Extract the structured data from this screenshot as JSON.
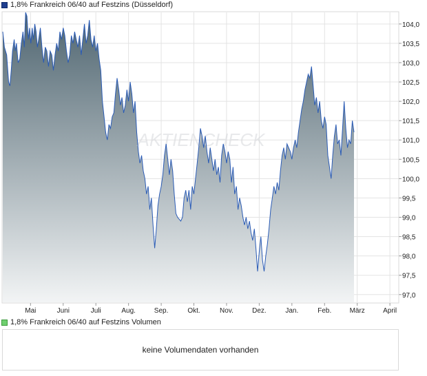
{
  "price_legend": {
    "label": "1,8% Frankreich 06/40 auf Festzins (Düsseldorf)",
    "color": "#1f3f8f"
  },
  "volume_legend": {
    "label": "1,8% Frankreich 06/40 auf Festzins Volumen",
    "color": "#6fcf6f"
  },
  "volume_panel": {
    "message": "keine Volumendaten vorhanden"
  },
  "watermark": "AKTIENCHECK",
  "chart_data": {
    "type": "area",
    "title": "1,8% Frankreich 06/40 auf Festzins (Düsseldorf)",
    "ylim": [
      96.8,
      104.3
    ],
    "yticks": [
      {
        "value": 104.0,
        "label": "104,0"
      },
      {
        "value": 103.5,
        "label": "103,5"
      },
      {
        "value": 103.0,
        "label": "103,0"
      },
      {
        "value": 102.5,
        "label": "102,5"
      },
      {
        "value": 102.0,
        "label": "102,0"
      },
      {
        "value": 101.5,
        "label": "101,5"
      },
      {
        "value": 101.0,
        "label": "101,0"
      },
      {
        "value": 100.5,
        "label": "100,5"
      },
      {
        "value": 100.0,
        "label": "100,0"
      },
      {
        "value": 99.5,
        "label": "99,5"
      },
      {
        "value": 99.0,
        "label": "99,0"
      },
      {
        "value": 98.5,
        "label": "98,5"
      },
      {
        "value": 98.0,
        "label": "98,0"
      },
      {
        "value": 97.5,
        "label": "97,5"
      },
      {
        "value": 97.0,
        "label": "97,0"
      }
    ],
    "xlim": [
      0,
      12.1
    ],
    "xticks": [
      {
        "pos": 0.85,
        "label": "Mai"
      },
      {
        "pos": 1.85,
        "label": "Juni"
      },
      {
        "pos": 2.85,
        "label": "Juli"
      },
      {
        "pos": 3.85,
        "label": "Aug."
      },
      {
        "pos": 4.85,
        "label": "Sep."
      },
      {
        "pos": 5.85,
        "label": "Okt."
      },
      {
        "pos": 6.85,
        "label": "Nov."
      },
      {
        "pos": 7.85,
        "label": "Dez."
      },
      {
        "pos": 8.85,
        "label": "Jan."
      },
      {
        "pos": 9.85,
        "label": "Feb."
      },
      {
        "pos": 10.85,
        "label": "März"
      },
      {
        "pos": 11.85,
        "label": "April"
      }
    ],
    "series": [
      {
        "line_color": "#2a5bb5",
        "fill_top": "#4f6570",
        "fill_bottom": "#f2f4f5",
        "points": [
          [
            0.0,
            103.8
          ],
          [
            0.05,
            103.4
          ],
          [
            0.12,
            103.2
          ],
          [
            0.18,
            102.5
          ],
          [
            0.22,
            102.4
          ],
          [
            0.26,
            102.8
          ],
          [
            0.3,
            103.3
          ],
          [
            0.35,
            103.6
          ],
          [
            0.38,
            103.3
          ],
          [
            0.42,
            103.5
          ],
          [
            0.47,
            103.0
          ],
          [
            0.52,
            103.1
          ],
          [
            0.57,
            103.5
          ],
          [
            0.62,
            103.8
          ],
          [
            0.66,
            103.4
          ],
          [
            0.7,
            104.3
          ],
          [
            0.74,
            104.2
          ],
          [
            0.78,
            103.6
          ],
          [
            0.82,
            103.9
          ],
          [
            0.86,
            103.5
          ],
          [
            0.9,
            103.9
          ],
          [
            0.94,
            103.6
          ],
          [
            0.98,
            104.0
          ],
          [
            1.02,
            103.8
          ],
          [
            1.06,
            103.4
          ],
          [
            1.1,
            103.6
          ],
          [
            1.15,
            103.9
          ],
          [
            1.2,
            103.4
          ],
          [
            1.25,
            103.0
          ],
          [
            1.3,
            103.4
          ],
          [
            1.35,
            103.3
          ],
          [
            1.4,
            102.9
          ],
          [
            1.45,
            103.3
          ],
          [
            1.5,
            103.2
          ],
          [
            1.55,
            102.8
          ],
          [
            1.6,
            103.2
          ],
          [
            1.65,
            103.5
          ],
          [
            1.7,
            103.3
          ],
          [
            1.75,
            103.8
          ],
          [
            1.8,
            103.6
          ],
          [
            1.85,
            103.9
          ],
          [
            1.9,
            103.7
          ],
          [
            1.95,
            103.3
          ],
          [
            2.0,
            103.0
          ],
          [
            2.05,
            103.2
          ],
          [
            2.1,
            103.7
          ],
          [
            2.15,
            103.5
          ],
          [
            2.2,
            103.8
          ],
          [
            2.25,
            103.6
          ],
          [
            2.3,
            103.4
          ],
          [
            2.35,
            103.7
          ],
          [
            2.4,
            103.2
          ],
          [
            2.45,
            103.6
          ],
          [
            2.5,
            104.0
          ],
          [
            2.55,
            103.5
          ],
          [
            2.6,
            103.7
          ],
          [
            2.65,
            104.1
          ],
          [
            2.7,
            103.6
          ],
          [
            2.75,
            103.4
          ],
          [
            2.8,
            103.7
          ],
          [
            2.85,
            103.3
          ],
          [
            2.9,
            103.5
          ],
          [
            2.95,
            103.1
          ],
          [
            3.0,
            102.8
          ],
          [
            3.05,
            102.0
          ],
          [
            3.1,
            101.6
          ],
          [
            3.15,
            101.2
          ],
          [
            3.2,
            101.0
          ],
          [
            3.25,
            101.4
          ],
          [
            3.3,
            101.3
          ],
          [
            3.35,
            101.6
          ],
          [
            3.4,
            101.7
          ],
          [
            3.45,
            102.2
          ],
          [
            3.5,
            102.6
          ],
          [
            3.55,
            102.3
          ],
          [
            3.6,
            101.9
          ],
          [
            3.65,
            102.1
          ],
          [
            3.7,
            101.7
          ],
          [
            3.75,
            101.9
          ],
          [
            3.8,
            102.3
          ],
          [
            3.85,
            102.0
          ],
          [
            3.9,
            102.5
          ],
          [
            3.95,
            102.2
          ],
          [
            4.0,
            101.7
          ],
          [
            4.05,
            102.0
          ],
          [
            4.1,
            101.2
          ],
          [
            4.15,
            100.7
          ],
          [
            4.2,
            100.4
          ],
          [
            4.25,
            100.6
          ],
          [
            4.3,
            100.2
          ],
          [
            4.35,
            100.0
          ],
          [
            4.4,
            99.6
          ],
          [
            4.45,
            99.8
          ],
          [
            4.5,
            99.2
          ],
          [
            4.55,
            99.5
          ],
          [
            4.6,
            98.8
          ],
          [
            4.65,
            98.2
          ],
          [
            4.7,
            98.7
          ],
          [
            4.75,
            99.3
          ],
          [
            4.8,
            99.6
          ],
          [
            4.85,
            99.8
          ],
          [
            4.9,
            100.1
          ],
          [
            4.95,
            100.6
          ],
          [
            5.0,
            100.9
          ],
          [
            5.05,
            100.5
          ],
          [
            5.1,
            100.1
          ],
          [
            5.15,
            100.5
          ],
          [
            5.2,
            100.2
          ],
          [
            5.25,
            99.6
          ],
          [
            5.3,
            99.1
          ],
          [
            5.35,
            99.0
          ],
          [
            5.4,
            98.95
          ],
          [
            5.45,
            98.9
          ],
          [
            5.5,
            99.0
          ],
          [
            5.55,
            99.5
          ],
          [
            5.6,
            99.7
          ],
          [
            5.65,
            99.4
          ],
          [
            5.7,
            99.7
          ],
          [
            5.75,
            99.2
          ],
          [
            5.8,
            99.8
          ],
          [
            5.85,
            99.6
          ],
          [
            5.9,
            100.0
          ],
          [
            5.95,
            100.4
          ],
          [
            6.0,
            100.8
          ],
          [
            6.05,
            101.3
          ],
          [
            6.1,
            101.1
          ],
          [
            6.15,
            100.8
          ],
          [
            6.2,
            101.1
          ],
          [
            6.25,
            100.7
          ],
          [
            6.3,
            100.4
          ],
          [
            6.35,
            100.8
          ],
          [
            6.4,
            100.5
          ],
          [
            6.45,
            100.2
          ],
          [
            6.5,
            100.5
          ],
          [
            6.55,
            100.1
          ],
          [
            6.6,
            100.3
          ],
          [
            6.65,
            99.9
          ],
          [
            6.7,
            100.6
          ],
          [
            6.75,
            100.9
          ],
          [
            6.8,
            100.7
          ],
          [
            6.85,
            100.4
          ],
          [
            6.9,
            100.7
          ],
          [
            6.95,
            100.5
          ],
          [
            7.0,
            99.9
          ],
          [
            7.05,
            100.3
          ],
          [
            7.1,
            99.6
          ],
          [
            7.15,
            99.8
          ],
          [
            7.2,
            99.2
          ],
          [
            7.25,
            99.5
          ],
          [
            7.3,
            99.3
          ],
          [
            7.35,
            99.0
          ],
          [
            7.4,
            98.8
          ],
          [
            7.45,
            99.0
          ],
          [
            7.5,
            98.7
          ],
          [
            7.55,
            98.9
          ],
          [
            7.6,
            98.6
          ],
          [
            7.65,
            98.4
          ],
          [
            7.7,
            98.7
          ],
          [
            7.75,
            98.2
          ],
          [
            7.8,
            97.6
          ],
          [
            7.85,
            98.1
          ],
          [
            7.9,
            98.5
          ],
          [
            7.95,
            97.9
          ],
          [
            8.0,
            97.6
          ],
          [
            8.05,
            98.0
          ],
          [
            8.1,
            98.3
          ],
          [
            8.15,
            98.7
          ],
          [
            8.2,
            99.2
          ],
          [
            8.25,
            99.5
          ],
          [
            8.3,
            99.8
          ],
          [
            8.35,
            99.6
          ],
          [
            8.4,
            99.9
          ],
          [
            8.45,
            99.7
          ],
          [
            8.5,
            100.2
          ],
          [
            8.55,
            100.6
          ],
          [
            8.6,
            100.8
          ],
          [
            8.65,
            100.5
          ],
          [
            8.7,
            100.9
          ],
          [
            8.75,
            100.8
          ],
          [
            8.8,
            100.7
          ],
          [
            8.85,
            100.5
          ],
          [
            8.9,
            100.8
          ],
          [
            8.95,
            101.0
          ],
          [
            9.0,
            100.8
          ],
          [
            9.05,
            101.2
          ],
          [
            9.1,
            101.5
          ],
          [
            9.15,
            101.8
          ],
          [
            9.2,
            102.0
          ],
          [
            9.25,
            102.3
          ],
          [
            9.3,
            102.5
          ],
          [
            9.35,
            102.7
          ],
          [
            9.4,
            102.6
          ],
          [
            9.45,
            102.9
          ],
          [
            9.5,
            102.4
          ],
          [
            9.55,
            101.9
          ],
          [
            9.6,
            102.1
          ],
          [
            9.65,
            101.7
          ],
          [
            9.7,
            102.0
          ],
          [
            9.75,
            101.5
          ],
          [
            9.8,
            101.3
          ],
          [
            9.85,
            101.6
          ],
          [
            9.9,
            101.4
          ],
          [
            9.95,
            100.6
          ],
          [
            10.0,
            100.3
          ],
          [
            10.05,
            100.0
          ],
          [
            10.1,
            100.6
          ],
          [
            10.15,
            101.1
          ],
          [
            10.2,
            101.4
          ],
          [
            10.25,
            100.9
          ],
          [
            10.3,
            101.0
          ],
          [
            10.35,
            100.6
          ],
          [
            10.4,
            101.3
          ],
          [
            10.45,
            102.0
          ],
          [
            10.5,
            101.3
          ],
          [
            10.55,
            100.8
          ],
          [
            10.6,
            101.0
          ],
          [
            10.65,
            100.9
          ],
          [
            10.7,
            101.5
          ],
          [
            10.75,
            101.2
          ]
        ]
      }
    ]
  }
}
